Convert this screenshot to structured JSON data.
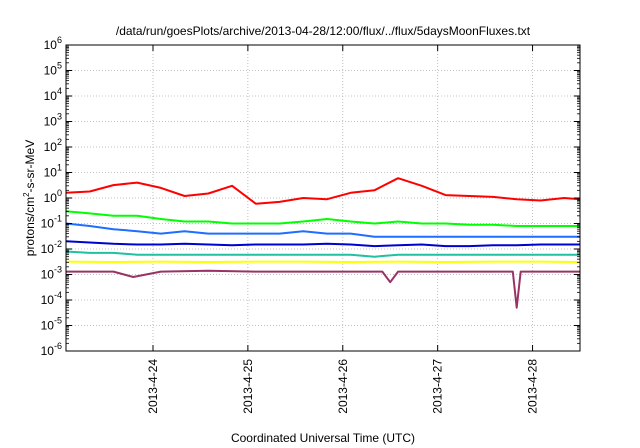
{
  "chart_data": {
    "type": "line",
    "title": "/data/run/goesPlots/archive/2013-04-28/12:00/flux/../flux/5daysMoonFluxes.txt",
    "xlabel": "Coordinated Universal Time (UTC)",
    "ylabel_parts": {
      "pre": "protons/cm",
      "sup": "2",
      "post": "-s-sr-MeV"
    },
    "y_scale": "log",
    "ylim": [
      1e-06,
      1000000.0
    ],
    "y_ticks": [
      {
        "value": 1e-06,
        "base": "10",
        "exp": "-6"
      },
      {
        "value": 1e-05,
        "base": "10",
        "exp": "-5"
      },
      {
        "value": 0.0001,
        "base": "10",
        "exp": "-4"
      },
      {
        "value": 0.001,
        "base": "10",
        "exp": "-3"
      },
      {
        "value": 0.01,
        "base": "10",
        "exp": "-2"
      },
      {
        "value": 0.1,
        "base": "10",
        "exp": "-1"
      },
      {
        "value": 1.0,
        "base": "10",
        "exp": "0"
      },
      {
        "value": 10.0,
        "base": "10",
        "exp": "1"
      },
      {
        "value": 100.0,
        "base": "10",
        "exp": "2"
      },
      {
        "value": 1000.0,
        "base": "10",
        "exp": "3"
      },
      {
        "value": 10000.0,
        "base": "10",
        "exp": "4"
      },
      {
        "value": 100000.0,
        "base": "10",
        "exp": "5"
      },
      {
        "value": 1000000.0,
        "base": "10",
        "exp": "6"
      }
    ],
    "xlim": [
      "2013-04-23 02:00",
      "2013-04-28 12:00"
    ],
    "x_ticks": [
      {
        "value": "2013-04-24 00:00",
        "label": "2013-4-24"
      },
      {
        "value": "2013-04-25 00:00",
        "label": "2013-4-25"
      },
      {
        "value": "2013-04-26 00:00",
        "label": "2013-4-26"
      },
      {
        "value": "2013-04-27 00:00",
        "label": "2013-4-27"
      },
      {
        "value": "2013-04-28 00:00",
        "label": "2013-4-28"
      }
    ],
    "grid": true,
    "legend": "none",
    "series": [
      {
        "color": "#ff0000",
        "x": [
          "2013-04-23 02:00",
          "2013-04-23 08:00",
          "2013-04-23 14:00",
          "2013-04-23 20:00",
          "2013-04-24 02:00",
          "2013-04-24 08:00",
          "2013-04-24 14:00",
          "2013-04-24 20:00",
          "2013-04-25 02:00",
          "2013-04-25 08:00",
          "2013-04-25 14:00",
          "2013-04-25 20:00",
          "2013-04-26 02:00",
          "2013-04-26 08:00",
          "2013-04-26 14:00",
          "2013-04-26 20:00",
          "2013-04-27 02:00",
          "2013-04-27 08:00",
          "2013-04-27 14:00",
          "2013-04-27 20:00",
          "2013-04-28 02:00",
          "2013-04-28 08:00",
          "2013-04-28 12:00"
        ],
        "values": [
          1.6,
          1.8,
          3.2,
          4.0,
          2.5,
          1.2,
          1.5,
          3.0,
          0.6,
          0.7,
          1.0,
          0.9,
          1.6,
          2.0,
          6.0,
          3.0,
          1.3,
          1.2,
          1.1,
          0.9,
          0.8,
          1.0,
          0.9
        ]
      },
      {
        "color": "#00ff00",
        "x": [
          "2013-04-23 02:00",
          "2013-04-23 08:00",
          "2013-04-23 14:00",
          "2013-04-23 20:00",
          "2013-04-24 02:00",
          "2013-04-24 08:00",
          "2013-04-24 14:00",
          "2013-04-24 20:00",
          "2013-04-25 02:00",
          "2013-04-25 08:00",
          "2013-04-25 14:00",
          "2013-04-25 20:00",
          "2013-04-26 02:00",
          "2013-04-26 08:00",
          "2013-04-26 14:00",
          "2013-04-26 20:00",
          "2013-04-27 02:00",
          "2013-04-27 08:00",
          "2013-04-27 14:00",
          "2013-04-27 20:00",
          "2013-04-28 02:00",
          "2013-04-28 08:00",
          "2013-04-28 12:00"
        ],
        "values": [
          0.3,
          0.25,
          0.2,
          0.2,
          0.15,
          0.12,
          0.12,
          0.1,
          0.1,
          0.1,
          0.12,
          0.15,
          0.12,
          0.1,
          0.12,
          0.1,
          0.1,
          0.09,
          0.09,
          0.08,
          0.08,
          0.08,
          0.08
        ]
      },
      {
        "color": "#1e6fff",
        "x": [
          "2013-04-23 02:00",
          "2013-04-23 08:00",
          "2013-04-23 14:00",
          "2013-04-23 20:00",
          "2013-04-24 02:00",
          "2013-04-24 08:00",
          "2013-04-24 14:00",
          "2013-04-24 20:00",
          "2013-04-25 02:00",
          "2013-04-25 08:00",
          "2013-04-25 14:00",
          "2013-04-25 20:00",
          "2013-04-26 02:00",
          "2013-04-26 08:00",
          "2013-04-26 14:00",
          "2013-04-26 20:00",
          "2013-04-27 02:00",
          "2013-04-27 08:00",
          "2013-04-27 14:00",
          "2013-04-27 20:00",
          "2013-04-28 02:00",
          "2013-04-28 08:00",
          "2013-04-28 12:00"
        ],
        "values": [
          0.1,
          0.08,
          0.06,
          0.05,
          0.04,
          0.05,
          0.04,
          0.04,
          0.04,
          0.04,
          0.05,
          0.04,
          0.04,
          0.03,
          0.03,
          0.03,
          0.03,
          0.03,
          0.03,
          0.03,
          0.03,
          0.03,
          0.03
        ]
      },
      {
        "color": "#0000d0",
        "x": [
          "2013-04-23 02:00",
          "2013-04-23 08:00",
          "2013-04-23 14:00",
          "2013-04-23 20:00",
          "2013-04-24 02:00",
          "2013-04-24 08:00",
          "2013-04-24 14:00",
          "2013-04-24 20:00",
          "2013-04-25 02:00",
          "2013-04-25 08:00",
          "2013-04-25 14:00",
          "2013-04-25 20:00",
          "2013-04-26 02:00",
          "2013-04-26 08:00",
          "2013-04-26 14:00",
          "2013-04-26 20:00",
          "2013-04-27 02:00",
          "2013-04-27 08:00",
          "2013-04-27 14:00",
          "2013-04-27 20:00",
          "2013-04-28 02:00",
          "2013-04-28 08:00",
          "2013-04-28 12:00"
        ],
        "values": [
          0.02,
          0.018,
          0.016,
          0.015,
          0.015,
          0.016,
          0.015,
          0.014,
          0.015,
          0.015,
          0.015,
          0.016,
          0.015,
          0.013,
          0.014,
          0.015,
          0.013,
          0.013,
          0.014,
          0.014,
          0.015,
          0.015,
          0.015
        ]
      },
      {
        "color": "#20c0a0",
        "x": [
          "2013-04-23 02:00",
          "2013-04-23 08:00",
          "2013-04-23 14:00",
          "2013-04-23 20:00",
          "2013-04-24 02:00",
          "2013-04-24 08:00",
          "2013-04-24 14:00",
          "2013-04-24 20:00",
          "2013-04-25 02:00",
          "2013-04-25 08:00",
          "2013-04-25 14:00",
          "2013-04-25 20:00",
          "2013-04-26 02:00",
          "2013-04-26 08:00",
          "2013-04-26 14:00",
          "2013-04-26 20:00",
          "2013-04-27 02:00",
          "2013-04-27 08:00",
          "2013-04-27 14:00",
          "2013-04-27 20:00",
          "2013-04-28 02:00",
          "2013-04-28 08:00",
          "2013-04-28 12:00"
        ],
        "values": [
          0.008,
          0.007,
          0.007,
          0.006,
          0.006,
          0.006,
          0.006,
          0.006,
          0.006,
          0.006,
          0.006,
          0.006,
          0.006,
          0.005,
          0.006,
          0.006,
          0.006,
          0.006,
          0.006,
          0.006,
          0.006,
          0.006,
          0.006
        ]
      },
      {
        "color": "#ffff00",
        "x": [
          "2013-04-23 02:00",
          "2013-04-23 14:00",
          "2013-04-24 02:00",
          "2013-04-24 14:00",
          "2013-04-25 02:00",
          "2013-04-25 14:00",
          "2013-04-26 02:00",
          "2013-04-26 14:00",
          "2013-04-27 02:00",
          "2013-04-27 14:00",
          "2013-04-28 02:00",
          "2013-04-28 12:00"
        ],
        "values": [
          0.0032,
          0.0031,
          0.0032,
          0.0031,
          0.0032,
          0.0032,
          0.0031,
          0.0032,
          0.0031,
          0.0032,
          0.0032,
          0.0031
        ]
      },
      {
        "color": "#993366",
        "x": [
          "2013-04-23 02:00",
          "2013-04-23 14:00",
          "2013-04-23 19:00",
          "2013-04-24 02:00",
          "2013-04-24 14:00",
          "2013-04-25 02:00",
          "2013-04-25 14:00",
          "2013-04-26 02:00",
          "2013-04-26 10:00",
          "2013-04-26 12:00",
          "2013-04-26 14:00",
          "2013-04-27 02:00",
          "2013-04-27 14:00",
          "2013-04-27 19:00",
          "2013-04-27 20:00",
          "2013-04-27 21:00",
          "2013-04-28 02:00",
          "2013-04-28 12:00"
        ],
        "values": [
          0.0013,
          0.0013,
          0.0008,
          0.0013,
          0.0014,
          0.0013,
          0.0013,
          0.0013,
          0.0013,
          0.0005,
          0.0013,
          0.0013,
          0.0013,
          0.0013,
          5e-05,
          0.0013,
          0.0013,
          0.0013
        ]
      }
    ]
  }
}
